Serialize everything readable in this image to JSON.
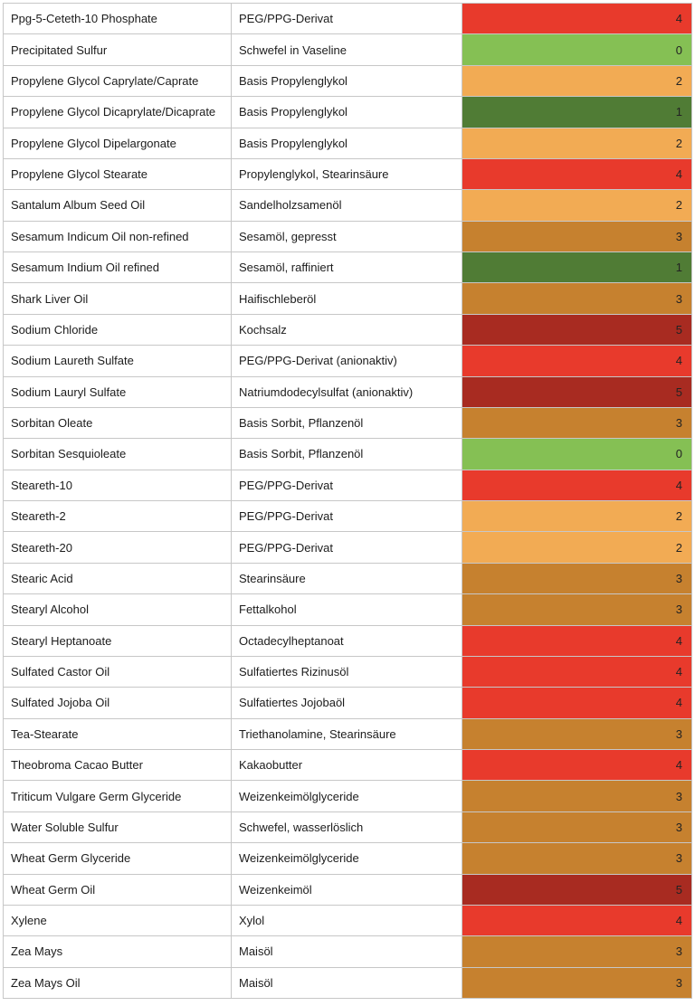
{
  "page": {
    "background": "#ffffff",
    "border_color": "#c7c7c7",
    "text_color": "#1c1c1c"
  },
  "rating_colors": {
    "0": "#85c054",
    "1": "#507c35",
    "2": "#f2ab54",
    "3": "#c6812f",
    "4": "#e83a2c",
    "5": "#a82b21"
  },
  "table": {
    "columns": [
      "inci_name",
      "german_description",
      "comedogenic_rating"
    ],
    "rows": [
      {
        "inci": "Ppg-5-Ceteth-10 Phosphate",
        "description": "PEG/PPG-Derivat",
        "rating": "4"
      },
      {
        "inci": "Precipitated Sulfur",
        "description": "Schwefel in Vaseline",
        "rating": "0"
      },
      {
        "inci": "Propylene Glycol Caprylate/Caprate",
        "description": "Basis Propylenglykol",
        "rating": "2"
      },
      {
        "inci": "Propylene Glycol Dicaprylate/Dicaprate",
        "description": "Basis Propylenglykol",
        "rating": "1"
      },
      {
        "inci": "Propylene Glycol Dipelargonate",
        "description": "Basis Propylenglykol",
        "rating": "2"
      },
      {
        "inci": "Propylene Glycol Stearate",
        "description": "Propylenglykol, Stearinsäure",
        "rating": "4"
      },
      {
        "inci": "Santalum Album Seed Oil",
        "description": "Sandelholzsamenöl",
        "rating": "2"
      },
      {
        "inci": "Sesamum Indicum Oil non-refined",
        "description": "Sesamöl, gepresst",
        "rating": "3"
      },
      {
        "inci": "Sesamum Indium Oil refined",
        "description": "Sesamöl, raffiniert",
        "rating": "1"
      },
      {
        "inci": "Shark Liver Oil",
        "description": "Haifischleberöl",
        "rating": "3"
      },
      {
        "inci": "Sodium Chloride",
        "description": "Kochsalz",
        "rating": "5"
      },
      {
        "inci": "Sodium Laureth Sulfate",
        "description": "PEG/PPG-Derivat (anionaktiv)",
        "rating": "4"
      },
      {
        "inci": "Sodium Lauryl Sulfate",
        "description": "Natriumdodecylsulfat (anionaktiv)",
        "rating": "5"
      },
      {
        "inci": "Sorbitan Oleate",
        "description": "Basis Sorbit, Pflanzenöl",
        "rating": "3"
      },
      {
        "inci": "Sorbitan Sesquioleate",
        "description": "Basis Sorbit, Pflanzenöl",
        "rating": "0"
      },
      {
        "inci": "Steareth-10",
        "description": "PEG/PPG-Derivat",
        "rating": "4"
      },
      {
        "inci": "Steareth-2",
        "description": "PEG/PPG-Derivat",
        "rating": "2"
      },
      {
        "inci": "Steareth-20",
        "description": "PEG/PPG-Derivat",
        "rating": "2"
      },
      {
        "inci": "Stearic Acid",
        "description": "Stearinsäure",
        "rating": "3"
      },
      {
        "inci": "Stearyl Alcohol",
        "description": "Fettalkohol",
        "rating": "3"
      },
      {
        "inci": "Stearyl Heptanoate",
        "description": "Octadecylheptanoat",
        "rating": "4"
      },
      {
        "inci": "Sulfated Castor Oil",
        "description": "Sulfatiertes Rizinusöl",
        "rating": "4"
      },
      {
        "inci": "Sulfated Jojoba Oil",
        "description": "Sulfatiertes Jojobaöl",
        "rating": "4"
      },
      {
        "inci": "Tea-Stearate",
        "description": "Triethanolamine, Stearinsäure",
        "rating": "3"
      },
      {
        "inci": "Theobroma Cacao Butter",
        "description": "Kakaobutter",
        "rating": "4"
      },
      {
        "inci": "Triticum Vulgare Germ Glyceride",
        "description": "Weizenkeimölglyceride",
        "rating": "3"
      },
      {
        "inci": "Water Soluble Sulfur",
        "description": "Schwefel, wasserlöslich",
        "rating": "3"
      },
      {
        "inci": "Wheat Germ Glyceride",
        "description": "Weizenkeimölglyceride",
        "rating": "3"
      },
      {
        "inci": "Wheat Germ Oil",
        "description": "Weizenkeimöl",
        "rating": "5"
      },
      {
        "inci": "Xylene",
        "description": "Xylol",
        "rating": "4"
      },
      {
        "inci": "Zea Mays",
        "description": "Maisöl",
        "rating": "3"
      },
      {
        "inci": "Zea Mays Oil",
        "description": "Maisöl",
        "rating": "3"
      }
    ]
  }
}
